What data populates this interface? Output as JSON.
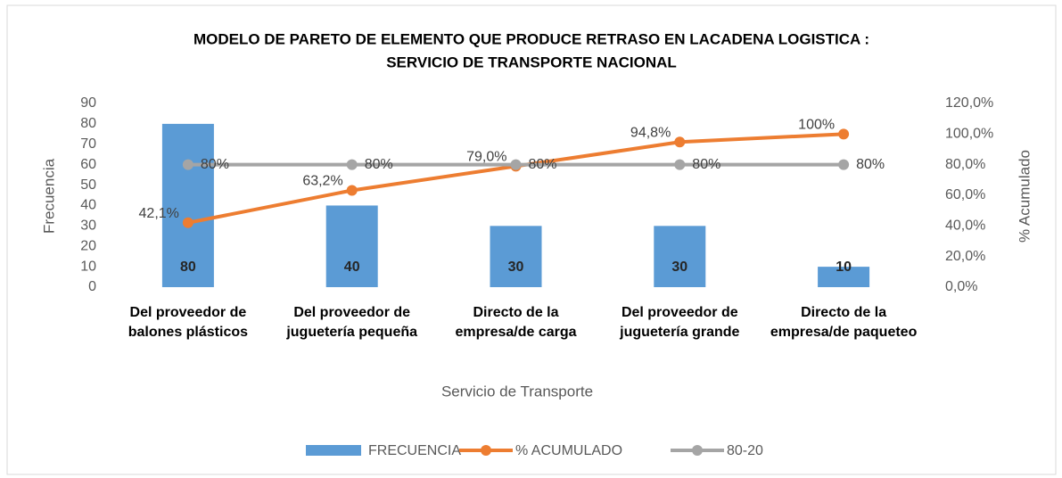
{
  "chart_data": {
    "type": "bar",
    "title": [
      "MODELO DE PARETO DE ELEMENTO QUE PRODUCE RETRASO EN LACADENA LOGISTICA :",
      "SERVICIO DE TRANSPORTE NACIONAL"
    ],
    "x_label": "Servicio de Transporte",
    "y_label": "Frecuencia",
    "y2_label": "% Acumulado",
    "categories": [
      "Del proveedor de balones plásticos",
      "Del proveedor de juguetería pequeña",
      "Directo de la empresa/de carga",
      "Del proveedor de juguetería grande",
      "Directo de la empresa/de paqueteo"
    ],
    "series": [
      {
        "name": "FRECUENCIA",
        "type": "bar",
        "color": "#5b9bd5",
        "values": [
          80,
          40,
          30,
          30,
          10
        ]
      },
      {
        "name": "% ACUMULADO",
        "type": "line",
        "axis": "y2",
        "color": "#ed7d31",
        "values": [
          42.1,
          63.2,
          79.0,
          94.8,
          100
        ],
        "value_labels": [
          "42,1%",
          "63,2%",
          "79,0%",
          "94,8%",
          "100%"
        ]
      },
      {
        "name": "80-20",
        "type": "line",
        "axis": "y2",
        "color": "#a5a5a5",
        "values": [
          80,
          80,
          80,
          80,
          80
        ],
        "value_labels": [
          "80%",
          "80%",
          "80%",
          "80%",
          "80%"
        ]
      }
    ],
    "ylim": [
      0,
      90
    ],
    "yticks": [
      0,
      10,
      20,
      30,
      40,
      50,
      60,
      70,
      80,
      90
    ],
    "y2lim": [
      0,
      120
    ],
    "y2ticks": [
      {
        "value": 0,
        "label": "0,0%"
      },
      {
        "value": 20,
        "label": "20,0%"
      },
      {
        "value": 40,
        "label": "40,0%"
      },
      {
        "value": 60,
        "label": "60,0%"
      },
      {
        "value": 80,
        "label": "80,0%"
      },
      {
        "value": 100,
        "label": "100,0%"
      },
      {
        "value": 120,
        "label": "120,0%"
      }
    ],
    "grid": false,
    "legend": "bottom"
  }
}
